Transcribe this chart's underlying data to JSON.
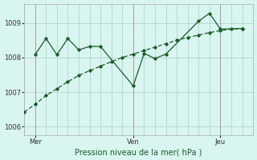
{
  "background_color": "#d8f5f0",
  "plot_bg_color": "#d8f5f0",
  "grid_color": "#b8d8d4",
  "line_color": "#1a5c28",
  "xlabel_color": "#1a5c28",
  "title": "Pression niveau de la mer( hPa )",
  "ylim": [
    1005.75,
    1009.55
  ],
  "yticks": [
    1006,
    1007,
    1008,
    1009
  ],
  "x_ticks_labels": [
    "Mer",
    "Ven",
    "Jeu"
  ],
  "x_ticks_pos": [
    2,
    11,
    19
  ],
  "vlines": [
    2,
    11,
    19
  ],
  "xlim": [
    1,
    22
  ],
  "line1_x": [
    1,
    2,
    3,
    4,
    5,
    6,
    7,
    8,
    9,
    10,
    11,
    12,
    13,
    14,
    15,
    16,
    17,
    18,
    19,
    20,
    21
  ],
  "line1_y": [
    1006.42,
    1006.65,
    1006.9,
    1007.1,
    1007.3,
    1007.48,
    1007.62,
    1007.75,
    1007.88,
    1008.0,
    1008.1,
    1008.2,
    1008.3,
    1008.4,
    1008.5,
    1008.58,
    1008.65,
    1008.72,
    1008.78,
    1008.82,
    1008.84
  ],
  "line2_x": [
    2,
    3,
    4,
    5,
    6,
    7,
    8,
    11,
    12,
    13,
    14,
    17,
    18,
    19,
    21
  ],
  "line2_y": [
    1008.08,
    1008.55,
    1008.08,
    1008.55,
    1008.22,
    1008.32,
    1008.32,
    1007.18,
    1008.12,
    1007.97,
    1008.1,
    1009.05,
    1009.28,
    1008.82,
    1008.84
  ]
}
